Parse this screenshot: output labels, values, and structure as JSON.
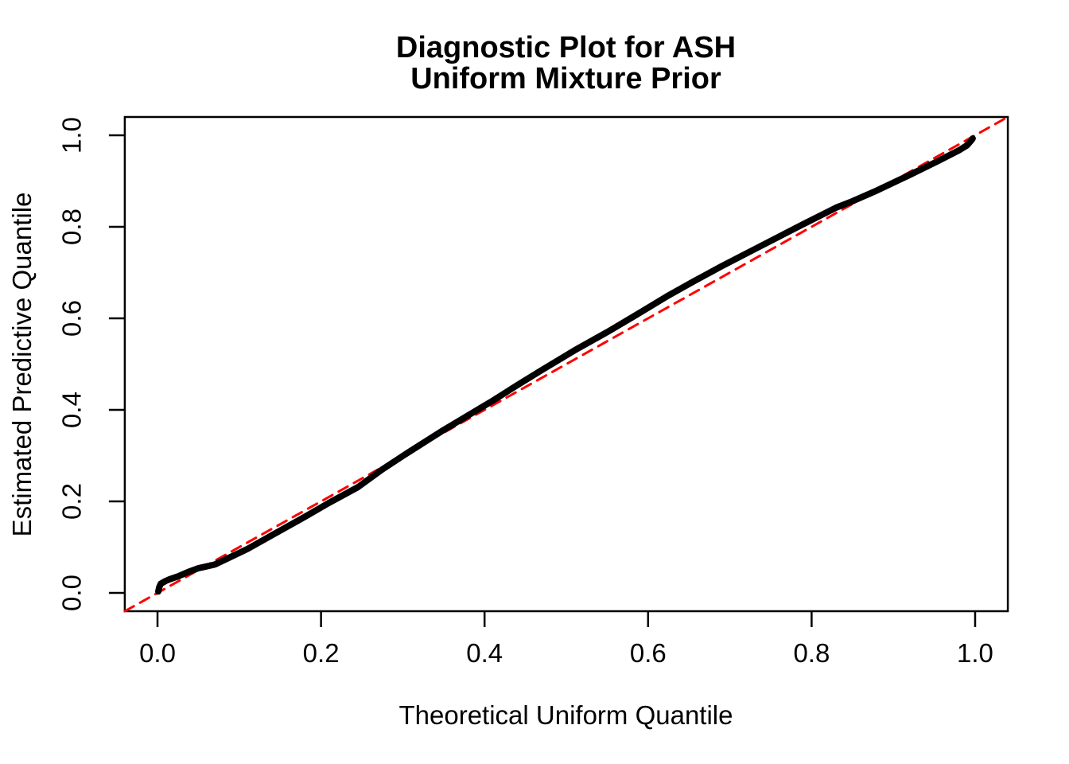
{
  "figure": {
    "title_lines": [
      "Diagnostic Plot for ASH",
      "Uniform Mixture Prior"
    ],
    "xlabel": "Theoretical Uniform Quantile",
    "ylabel": "Estimated Predictive Quantile",
    "background_color": "#FFFFFF",
    "frame_color": "#000000"
  },
  "chart_data": {
    "type": "line",
    "title": "Diagnostic Plot for ASH\nUniform Mixture Prior",
    "xlabel": "Theoretical Uniform Quantile",
    "ylabel": "Estimated Predictive Quantile",
    "xlim": [
      -0.04,
      1.04
    ],
    "ylim": [
      -0.04,
      1.04
    ],
    "grid": false,
    "legend": null,
    "xticks": {
      "values": [
        0.0,
        0.2,
        0.4,
        0.6,
        0.8,
        1.0
      ],
      "labels": [
        "0.0",
        "0.2",
        "0.4",
        "0.6",
        "0.8",
        "1.0"
      ]
    },
    "yticks": {
      "values": [
        0.0,
        0.2,
        0.4,
        0.6,
        0.8,
        1.0
      ],
      "labels": [
        "0.0",
        "0.2",
        "0.4",
        "0.6",
        "0.8",
        "1.0"
      ]
    },
    "series": [
      {
        "name": "reference-diagonal-y-equals-x",
        "color": "#FF0000",
        "line_width": 3,
        "dash": [
          13,
          9
        ],
        "points": [
          [
            -0.04,
            -0.04
          ],
          [
            1.04,
            1.04
          ]
        ]
      },
      {
        "name": "estimated-vs-theoretical-quantiles",
        "color": "#000000",
        "line_width": 8,
        "dash": null,
        "points": [
          [
            0.001,
            0.003
          ],
          [
            0.002,
            0.012
          ],
          [
            0.004,
            0.02
          ],
          [
            0.01,
            0.026
          ],
          [
            0.015,
            0.03
          ],
          [
            0.025,
            0.036
          ],
          [
            0.038,
            0.046
          ],
          [
            0.05,
            0.054
          ],
          [
            0.07,
            0.062
          ],
          [
            0.09,
            0.079
          ],
          [
            0.11,
            0.096
          ],
          [
            0.14,
            0.126
          ],
          [
            0.18,
            0.166
          ],
          [
            0.21,
            0.197
          ],
          [
            0.245,
            0.231
          ],
          [
            0.275,
            0.27
          ],
          [
            0.305,
            0.305
          ],
          [
            0.35,
            0.356
          ],
          [
            0.41,
            0.42
          ],
          [
            0.44,
            0.454
          ],
          [
            0.47,
            0.487
          ],
          [
            0.51,
            0.53
          ],
          [
            0.55,
            0.57
          ],
          [
            0.585,
            0.607
          ],
          [
            0.625,
            0.65
          ],
          [
            0.655,
            0.68
          ],
          [
            0.69,
            0.714
          ],
          [
            0.74,
            0.76
          ],
          [
            0.79,
            0.806
          ],
          [
            0.83,
            0.842
          ],
          [
            0.85,
            0.856
          ],
          [
            0.877,
            0.877
          ],
          [
            0.916,
            0.91
          ],
          [
            0.955,
            0.944
          ],
          [
            0.981,
            0.968
          ],
          [
            0.99,
            0.978
          ],
          [
            0.995,
            0.988
          ],
          [
            0.997,
            0.993
          ]
        ]
      }
    ]
  },
  "axes_style": {
    "tick_length": 20,
    "tick_width": 2.5,
    "frame_width": 2.5,
    "tick_font_size": 33
  }
}
